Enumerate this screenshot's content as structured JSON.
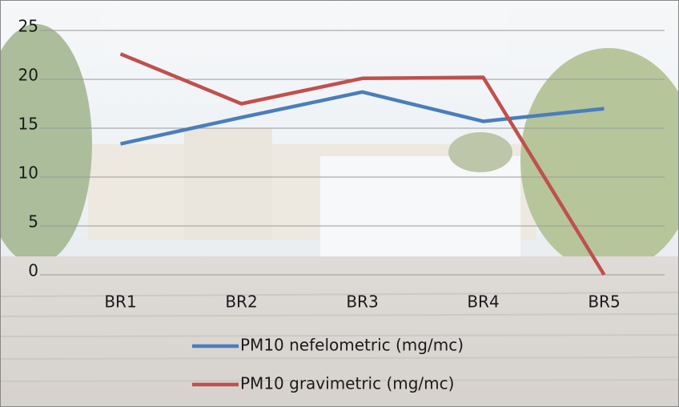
{
  "chart_data": {
    "type": "line",
    "categories": [
      "BR1",
      "BR2",
      "BR3",
      "BR4",
      "BR5"
    ],
    "series": [
      {
        "name": "PM10 nefelometric (mg/mc)",
        "color": "#4a7ebb",
        "values": [
          13.4,
          16.1,
          18.7,
          15.7,
          17.0
        ]
      },
      {
        "name": "PM10 gravimetric (mg/mc)",
        "color": "#c0504d",
        "values": [
          22.6,
          17.5,
          20.1,
          20.2,
          0
        ]
      }
    ],
    "ylim": [
      0,
      25
    ],
    "yticks": [
      0,
      5,
      10,
      15,
      20,
      25
    ],
    "grid": true
  }
}
